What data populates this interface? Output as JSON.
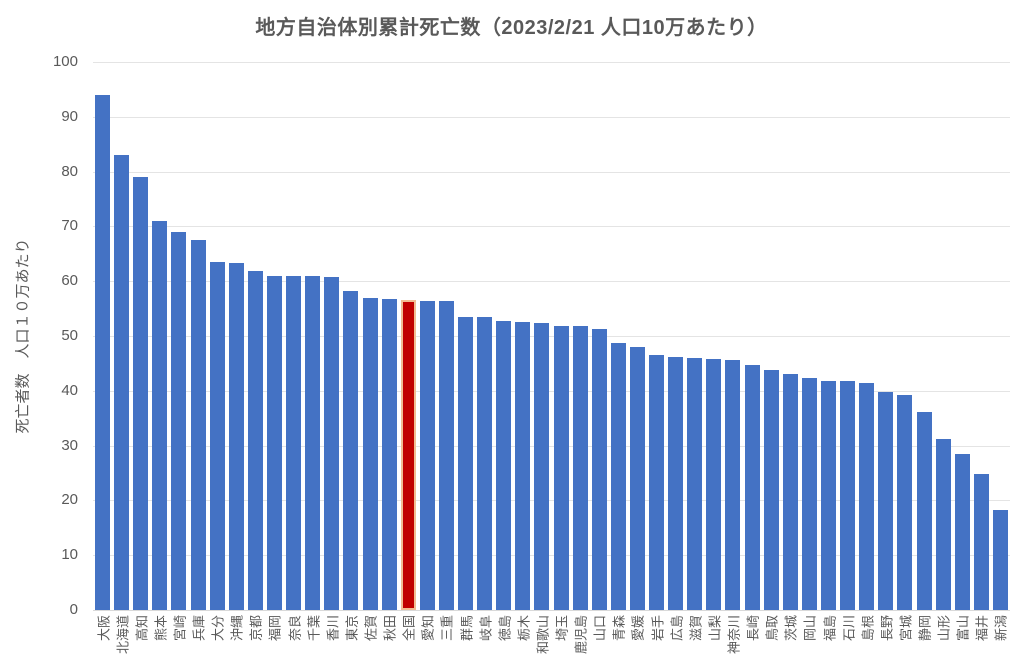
{
  "title": "地方自治体別累計死亡数（2023/2/21 人口10万あたり）",
  "colors": {
    "bar": "#4472C4",
    "highlight_bar": "#C00000",
    "highlight_border": "#F1BD93",
    "gridline": "#E4E4E4",
    "axis_line": "#D9D9D9",
    "axis_text": "#595959",
    "title_text": "#595959",
    "background": "#FFFFFF"
  },
  "chart_data": {
    "type": "bar",
    "title": "地方自治体別累計死亡数（2023/2/21 人口10万あたり）",
    "xlabel": "",
    "ylabel": "死亡者数　人口１０万あたり",
    "ylim": [
      0,
      100
    ],
    "yticks": [
      0,
      10,
      20,
      30,
      40,
      50,
      60,
      70,
      80,
      90,
      100
    ],
    "grid": true,
    "legend_position": "none",
    "x_label_rotation": -90,
    "categories": [
      "大阪",
      "北海道",
      "高知",
      "熊本",
      "宮崎",
      "兵庫",
      "大分",
      "沖縄",
      "京都",
      "福岡",
      "奈良",
      "千葉",
      "香川",
      "東京",
      "佐賀",
      "秋田",
      "全国",
      "愛知",
      "三重",
      "群馬",
      "岐阜",
      "徳島",
      "栃木",
      "和歌山",
      "埼玉",
      "鹿児島",
      "山口",
      "青森",
      "愛媛",
      "岩手",
      "広島",
      "滋賀",
      "山梨",
      "神奈川",
      "長崎",
      "鳥取",
      "茨城",
      "岡山",
      "福島",
      "石川",
      "島根",
      "長野",
      "宮城",
      "静岡",
      "山形",
      "富山",
      "福井",
      "新潟"
    ],
    "values": [
      94,
      83,
      79,
      71,
      69,
      67.5,
      63.5,
      63.3,
      61.8,
      61,
      61,
      61,
      60.8,
      58.3,
      57,
      56.8,
      56.6,
      56.3,
      56.3,
      53.5,
      53.5,
      52.8,
      52.5,
      52.4,
      51.8,
      51.8,
      51.2,
      48.8,
      48,
      46.6,
      46.2,
      46,
      45.8,
      45.7,
      44.8,
      43.8,
      43,
      42.3,
      41.8,
      41.8,
      41.4,
      39.7,
      39.3,
      36.2,
      31.2,
      28.5,
      24.8,
      18.2
    ],
    "highlight_category": "全国",
    "highlight_index": 16
  }
}
